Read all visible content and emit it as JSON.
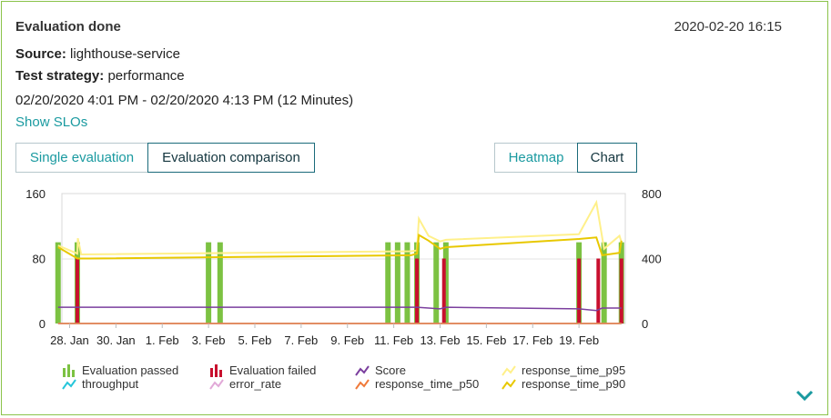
{
  "header": {
    "title": "Evaluation done",
    "timestamp": "2020-02-20 16:15",
    "source_label": "Source:",
    "source_value": "lighthouse-service",
    "strategy_label": "Test strategy:",
    "strategy_value": "performance",
    "time_range": "02/20/2020 4:01 PM - 02/20/2020 4:13 PM (12 Minutes)",
    "show_slos": "Show SLOs"
  },
  "tabs": {
    "single": "Single evaluation",
    "comparison": "Evaluation comparison",
    "heatmap": "Heatmap",
    "chart": "Chart"
  },
  "chart_data": {
    "type": "bar",
    "ylim_left": [
      0,
      160
    ],
    "ylim_right": [
      0,
      800
    ],
    "yticks_left": [
      "160",
      "80",
      "0"
    ],
    "yticks_right": [
      "800",
      "400",
      "0"
    ],
    "xticks": [
      "28. Jan",
      "30. Jan",
      "1. Feb",
      "3. Feb",
      "5. Feb",
      "7. Feb",
      "9. Feb",
      "11. Feb",
      "13. Feb",
      "15. Feb",
      "17. Feb",
      "19. Feb"
    ],
    "x_range": [
      "2020-01-27T16:00",
      "2020-02-21T00:00"
    ],
    "evaluation_passed": [
      {
        "date": "2020-01-27T12:00",
        "value": 100
      },
      {
        "date": "2020-01-28T08:00",
        "value": 100
      },
      {
        "date": "2020-02-03T00:00",
        "value": 100
      },
      {
        "date": "2020-02-03T12:00",
        "value": 100
      },
      {
        "date": "2020-02-10T18:00",
        "value": 100
      },
      {
        "date": "2020-02-11T04:00",
        "value": 100
      },
      {
        "date": "2020-02-11T14:00",
        "value": 100
      },
      {
        "date": "2020-02-12T00:00",
        "value": 100
      },
      {
        "date": "2020-02-12T20:00",
        "value": 100
      },
      {
        "date": "2020-02-13T06:00",
        "value": 100
      },
      {
        "date": "2020-02-19T00:00",
        "value": 100
      },
      {
        "date": "2020-02-20T02:00",
        "value": 100
      },
      {
        "date": "2020-02-20T20:00",
        "value": 100
      }
    ],
    "evaluation_failed": [
      {
        "date": "2020-01-28T08:00",
        "value": 80
      },
      {
        "date": "2020-02-12T00:00",
        "value": 80
      },
      {
        "date": "2020-02-13T04:00",
        "value": 80
      },
      {
        "date": "2020-02-19T00:00",
        "value": 80
      },
      {
        "date": "2020-02-19T20:00",
        "value": 80
      },
      {
        "date": "2020-02-20T20:00",
        "value": 80
      }
    ],
    "series": [
      {
        "name": "Score",
        "axis": "left",
        "color": "#7b3f9e",
        "points": [
          [
            "2020-01-27T12:00",
            20
          ],
          [
            "2020-01-28T08:00",
            20
          ],
          [
            "2020-02-11T12:00",
            20
          ],
          [
            "2020-02-12T00:00",
            20
          ],
          [
            "2020-02-13T00:00",
            18
          ],
          [
            "2020-02-13T06:00",
            20
          ],
          [
            "2020-02-19T00:00",
            18
          ],
          [
            "2020-02-19T18:00",
            16
          ],
          [
            "2020-02-20T00:00",
            19
          ],
          [
            "2020-02-20T20:00",
            19
          ]
        ]
      },
      {
        "name": "throughput",
        "axis": "right",
        "color": "#26c6da",
        "points": [
          [
            "2020-01-27T12:00",
            0
          ],
          [
            "2020-02-20T20:00",
            0
          ]
        ]
      },
      {
        "name": "error_rate",
        "axis": "right",
        "color": "#e1a9d8",
        "points": [
          [
            "2020-01-27T12:00",
            0
          ],
          [
            "2020-02-20T20:00",
            0
          ]
        ]
      },
      {
        "name": "response_time_p50",
        "axis": "right",
        "color": "#f07a3a",
        "points": [
          [
            "2020-01-27T12:00",
            0
          ],
          [
            "2020-02-20T20:00",
            0
          ]
        ]
      },
      {
        "name": "response_time_p95",
        "axis": "right",
        "color": "#fff08a",
        "points": [
          [
            "2020-01-27T12:00",
            480
          ],
          [
            "2020-01-28T08:00",
            430
          ],
          [
            "2020-01-28T08:30",
            525
          ],
          [
            "2020-01-28T12:00",
            425
          ],
          [
            "2020-02-11T18:00",
            445
          ],
          [
            "2020-02-12T00:00",
            450
          ],
          [
            "2020-02-12T02:00",
            645
          ],
          [
            "2020-02-12T12:00",
            540
          ],
          [
            "2020-02-13T00:00",
            505
          ],
          [
            "2020-02-13T06:00",
            515
          ],
          [
            "2020-02-19T00:00",
            550
          ],
          [
            "2020-02-19T18:00",
            745
          ],
          [
            "2020-02-20T02:00",
            460
          ],
          [
            "2020-02-20T18:00",
            540
          ],
          [
            "2020-02-20T20:00",
            500
          ]
        ]
      },
      {
        "name": "response_time_p90",
        "axis": "right",
        "color": "#e8c800",
        "points": [
          [
            "2020-01-27T12:00",
            470
          ],
          [
            "2020-01-28T08:00",
            400
          ],
          [
            "2020-01-28T20:00",
            400
          ],
          [
            "2020-02-11T18:00",
            420
          ],
          [
            "2020-02-12T00:00",
            430
          ],
          [
            "2020-02-12T02:00",
            545
          ],
          [
            "2020-02-12T12:00",
            510
          ],
          [
            "2020-02-13T00:00",
            460
          ],
          [
            "2020-02-13T06:00",
            470
          ],
          [
            "2020-02-19T00:00",
            520
          ],
          [
            "2020-02-19T18:00",
            530
          ],
          [
            "2020-02-20T00:00",
            420
          ],
          [
            "2020-02-20T18:00",
            435
          ],
          [
            "2020-02-20T20:00",
            510
          ]
        ]
      }
    ]
  },
  "legend": [
    {
      "name": "Evaluation passed",
      "icon": "bar-icon",
      "color": "#7cc242"
    },
    {
      "name": "Evaluation failed",
      "icon": "bar-icon",
      "color": "#c8102e"
    },
    {
      "name": "Score",
      "icon": "line-icon",
      "color": "#7b3f9e"
    },
    {
      "name": "response_time_p95",
      "icon": "line-icon",
      "color": "#fff08a"
    },
    {
      "name": "throughput",
      "icon": "line-icon",
      "color": "#26c6da"
    },
    {
      "name": "error_rate",
      "icon": "line-icon",
      "color": "#e1a9d8"
    },
    {
      "name": "response_time_p50",
      "icon": "line-icon",
      "color": "#f07a3a"
    },
    {
      "name": "response_time_p90",
      "icon": "line-icon",
      "color": "#e8c800"
    }
  ],
  "icons": {
    "expand": "chevron-down-icon"
  }
}
